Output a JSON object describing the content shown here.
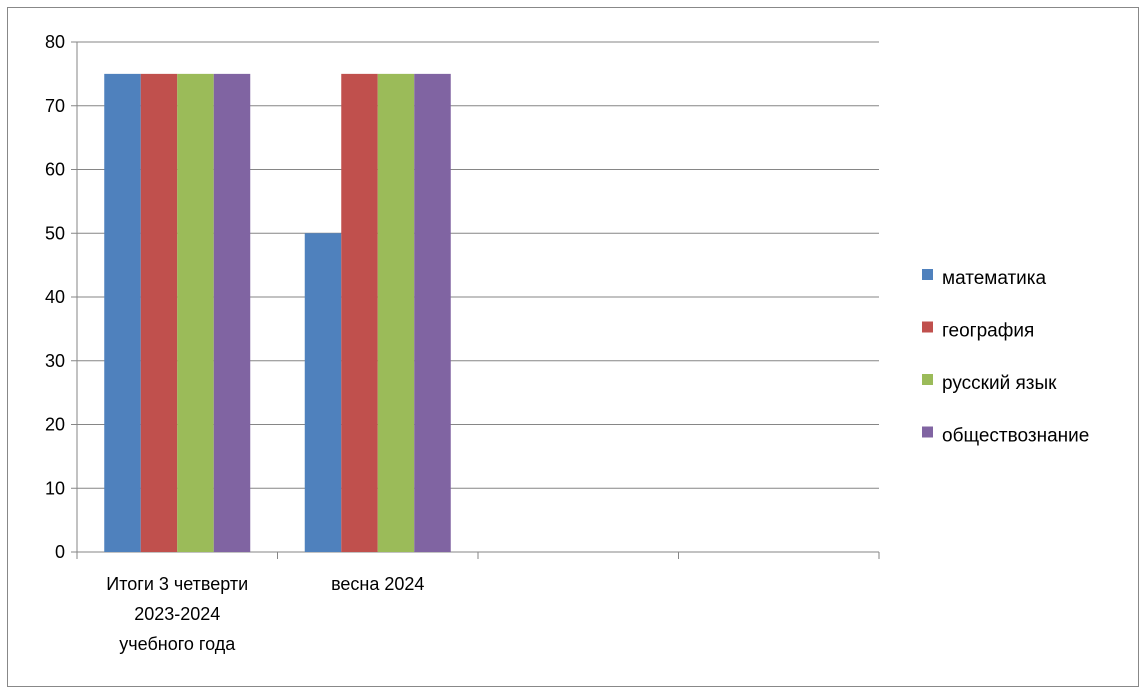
{
  "chart_data": {
    "type": "bar",
    "categories": [
      [
        "Итоги 3 четверти",
        "2023-2024",
        "учебного года"
      ],
      [
        "весна 2024"
      ],
      [
        ""
      ],
      [
        ""
      ]
    ],
    "series": [
      {
        "name": "математика",
        "color": "#4f81bd",
        "values": [
          75,
          50,
          null,
          null
        ]
      },
      {
        "name": "география",
        "color": "#c0504d",
        "values": [
          75,
          75,
          null,
          null
        ]
      },
      {
        "name": "русский язык",
        "color": "#9bbb59",
        "values": [
          75,
          75,
          null,
          null
        ]
      },
      {
        "name": "обществознание",
        "color": "#8064a2",
        "values": [
          75,
          75,
          null,
          null
        ]
      }
    ],
    "y_ticks": [
      "0",
      "10",
      "20",
      "30",
      "40",
      "50",
      "60",
      "70",
      "80"
    ],
    "ylim": [
      0,
      80
    ],
    "grid": true,
    "legend_position": "right"
  }
}
